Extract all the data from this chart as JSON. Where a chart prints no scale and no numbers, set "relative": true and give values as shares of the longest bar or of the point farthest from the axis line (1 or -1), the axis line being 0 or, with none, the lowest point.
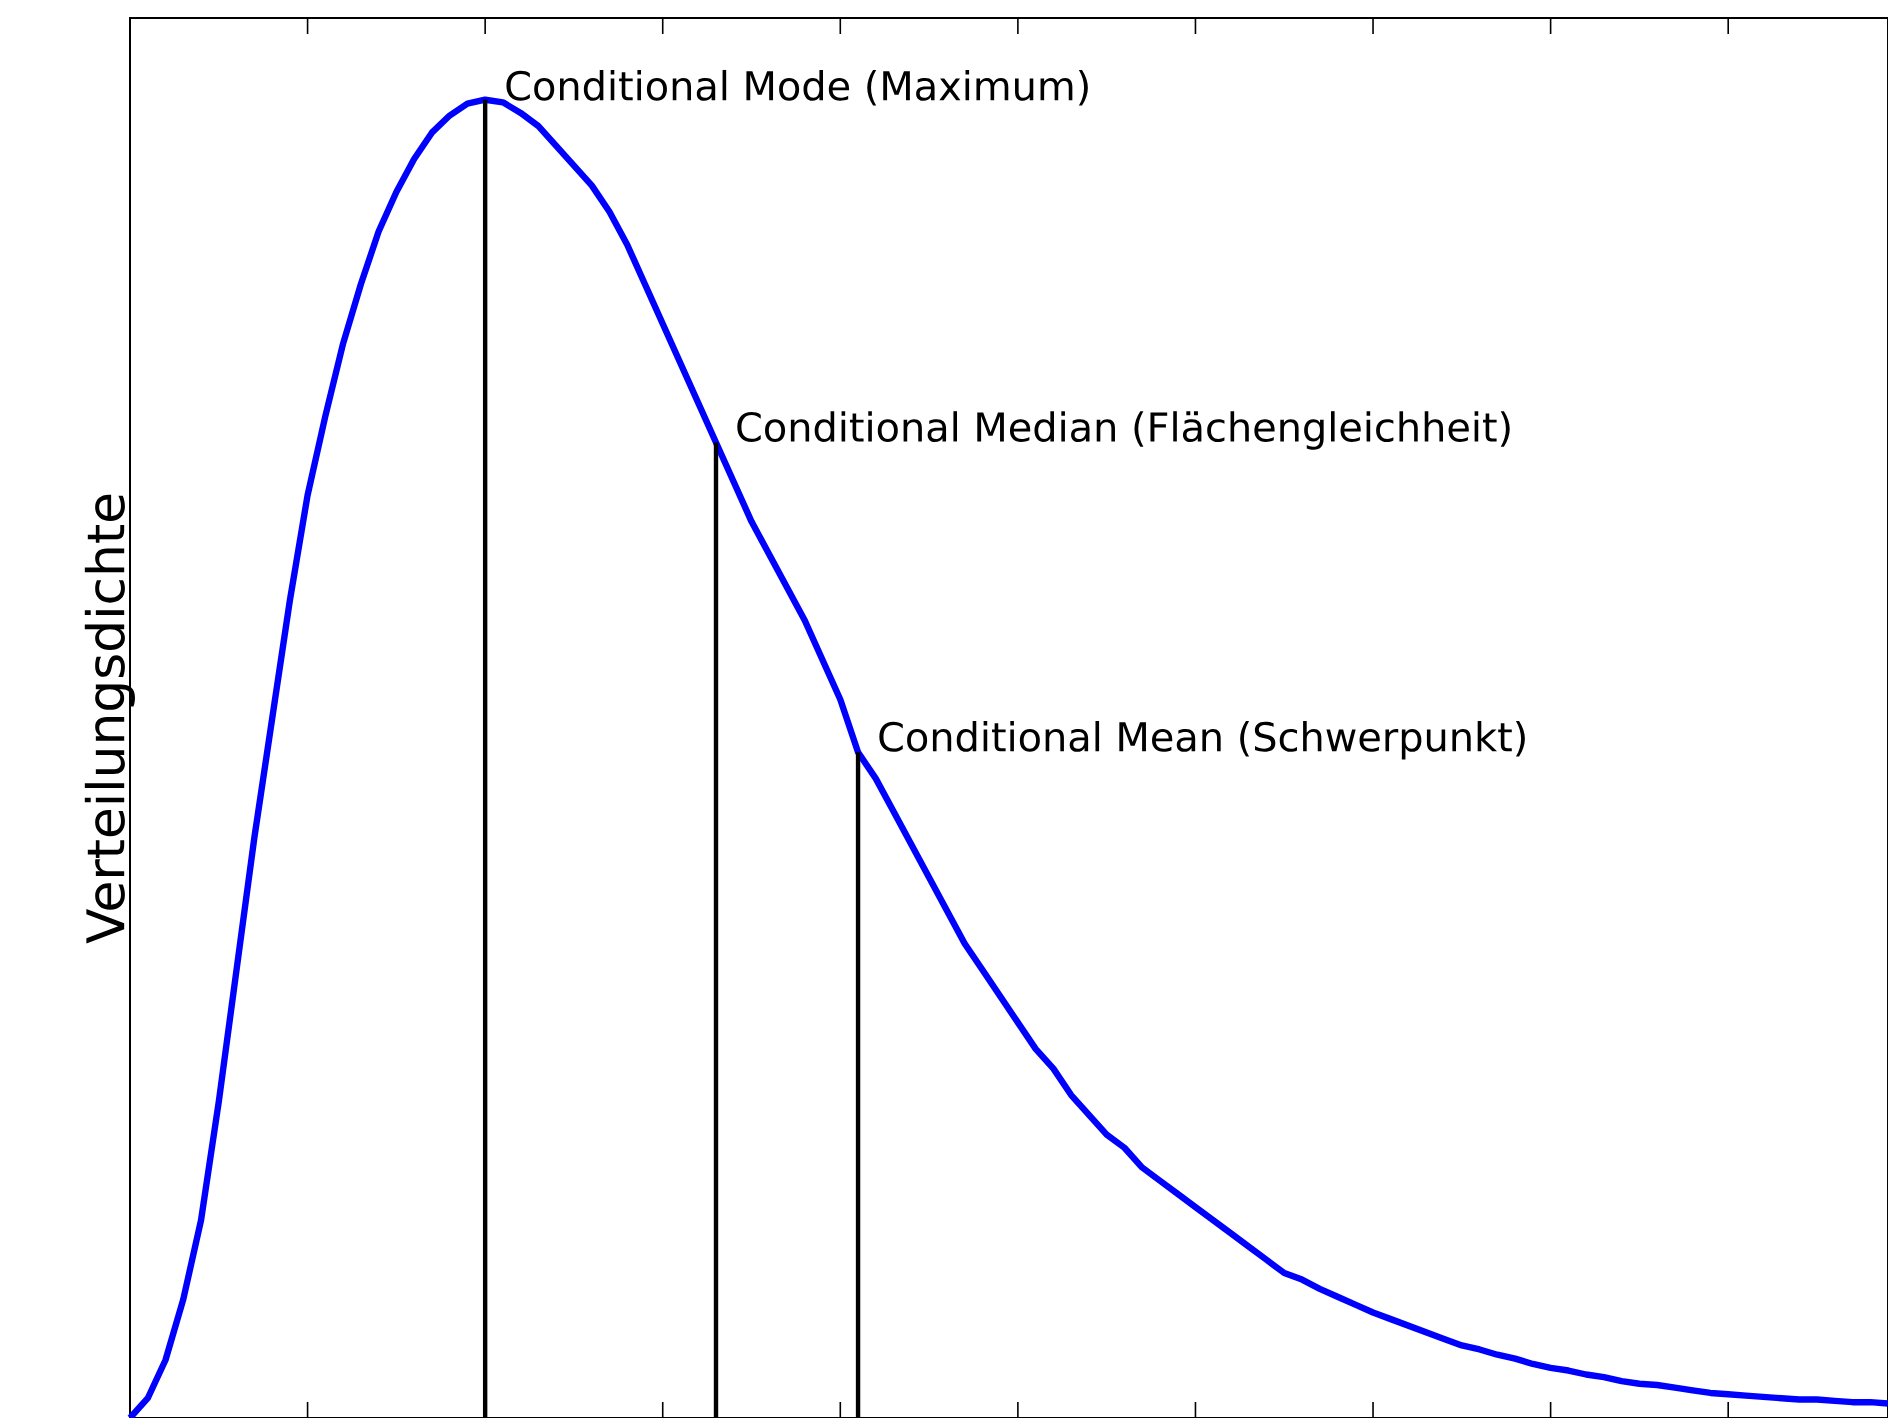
{
  "chart_data": {
    "type": "line",
    "relative": true,
    "ylabel": "Verteilungsdichte",
    "categories": [
      null,
      null,
      null,
      null,
      null,
      null,
      null,
      null,
      null,
      null,
      null,
      null,
      null,
      null,
      null,
      null,
      null,
      null,
      null,
      null,
      null,
      null,
      null,
      null,
      null,
      null,
      null,
      null,
      null,
      null,
      null,
      null,
      null,
      null,
      null,
      null,
      null,
      null,
      null,
      null,
      null,
      null,
      null,
      null,
      null,
      null,
      null,
      null,
      null,
      null,
      null,
      null,
      null,
      null,
      null,
      null,
      null,
      null,
      null,
      null,
      null,
      null,
      null,
      null,
      null,
      null,
      null,
      null,
      null,
      null,
      null,
      null,
      null,
      null,
      null,
      null,
      null,
      null,
      null,
      null,
      null,
      null,
      null,
      null,
      null,
      null,
      null,
      null,
      null,
      null,
      null,
      null,
      null,
      null,
      null,
      null,
      null,
      null,
      null,
      null
    ],
    "series": [
      {
        "color": "#0000ff",
        "values": [
          0,
          0.015,
          0.044,
          0.09,
          0.15,
          0.24,
          0.34,
          0.44,
          0.53,
          0.62,
          0.7,
          0.76,
          0.815,
          0.86,
          0.9,
          0.93,
          0.955,
          0.975,
          0.988,
          0.997,
          1,
          0.998,
          0.99,
          0.98,
          0.965,
          0.95,
          0.935,
          0.915,
          0.89,
          0.86,
          0.83,
          0.8,
          0.77,
          0.74,
          0.71,
          0.68,
          0.655,
          0.63,
          0.605,
          0.575,
          0.545,
          0.505,
          0.485,
          0.46,
          0.435,
          0.41,
          0.385,
          0.36,
          0.34,
          0.32,
          0.3,
          0.28,
          0.265,
          0.245,
          0.23,
          0.215,
          0.205,
          0.19,
          0.18,
          0.17,
          0.16,
          0.15,
          0.14,
          0.13,
          0.12,
          0.11,
          0.105,
          0.098,
          0.092,
          0.086,
          0.08,
          0.075,
          0.07,
          0.065,
          0.06,
          0.055,
          0.052,
          0.048,
          0.045,
          0.041,
          0.038,
          0.036,
          0.033,
          0.031,
          0.028,
          0.026,
          0.025,
          0.023,
          0.021,
          0.019,
          0.018,
          0.017,
          0.016,
          0.015,
          0.014,
          0.014,
          0.013,
          0.012,
          0.012,
          0.011
        ]
      }
    ],
    "annotations": [
      "Conditional Mode (Maximum)",
      "Conditional Median (Flächengleichheit)",
      "Conditional Mean (Schwerpunkt)"
    ]
  }
}
